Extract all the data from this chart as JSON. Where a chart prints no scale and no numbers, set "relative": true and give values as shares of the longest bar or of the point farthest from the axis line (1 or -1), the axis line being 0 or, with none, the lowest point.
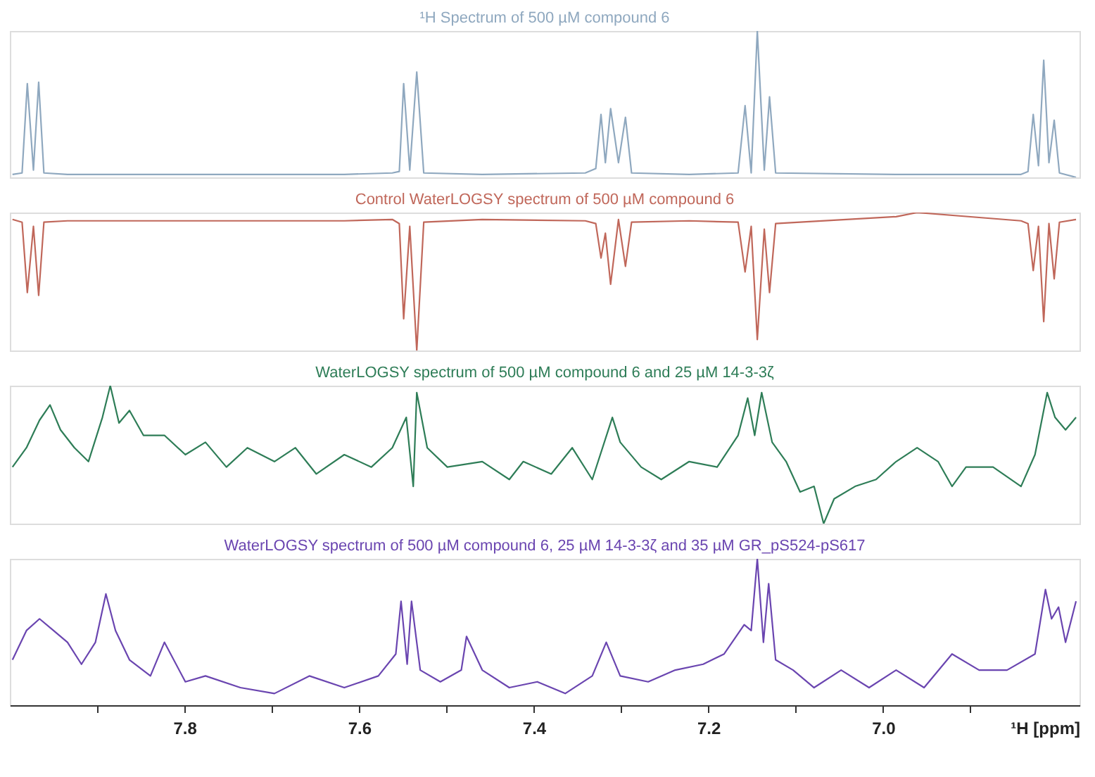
{
  "chart_data": [
    {
      "type": "line",
      "title": "¹H Spectrum of 500 µM compound 6",
      "relative": true,
      "xlim": [
        8.0,
        6.775
      ],
      "tick_labels": false,
      "series": [
        {
          "color": "#8fa8bf",
          "x": [
            7.997,
            7.986,
            7.98,
            7.973,
            7.967,
            7.961,
            7.934,
            7.776,
            7.617,
            7.562,
            7.554,
            7.549,
            7.542,
            7.534,
            7.526,
            7.459,
            7.341,
            7.329,
            7.323,
            7.318,
            7.312,
            7.303,
            7.295,
            7.288,
            7.222,
            7.166,
            7.158,
            7.151,
            7.144,
            7.136,
            7.13,
            7.123,
            6.985,
            6.961,
            6.842,
            6.834,
            6.828,
            6.822,
            6.816,
            6.81,
            6.804,
            6.798,
            6.779
          ],
          "values": [
            0.02,
            0.03,
            0.64,
            0.05,
            0.65,
            0.03,
            0.02,
            0.02,
            0.02,
            0.03,
            0.04,
            0.64,
            0.05,
            0.72,
            0.03,
            0.02,
            0.03,
            0.06,
            0.43,
            0.1,
            0.47,
            0.1,
            0.41,
            0.03,
            0.02,
            0.03,
            0.49,
            0.03,
            1.0,
            0.05,
            0.55,
            0.03,
            0.02,
            0.02,
            0.02,
            0.04,
            0.43,
            0.08,
            0.8,
            0.1,
            0.39,
            0.03,
            0.0
          ]
        }
      ]
    },
    {
      "type": "line",
      "title": "Control WaterLOGSY spectrum of 500 µM compound 6",
      "relative": true,
      "xlim": [
        8.0,
        6.775
      ],
      "tick_labels": false,
      "series": [
        {
          "color": "#c0675a",
          "x": [
            7.997,
            7.986,
            7.98,
            7.973,
            7.967,
            7.961,
            7.934,
            7.776,
            7.617,
            7.562,
            7.554,
            7.549,
            7.542,
            7.534,
            7.526,
            7.459,
            7.341,
            7.329,
            7.323,
            7.318,
            7.312,
            7.303,
            7.295,
            7.288,
            7.222,
            7.166,
            7.158,
            7.151,
            7.144,
            7.136,
            7.13,
            7.123,
            6.985,
            6.961,
            6.842,
            6.834,
            6.828,
            6.822,
            6.816,
            6.81,
            6.804,
            6.798,
            6.779
          ],
          "values": [
            0.95,
            0.93,
            0.42,
            0.9,
            0.4,
            0.93,
            0.94,
            0.94,
            0.94,
            0.95,
            0.92,
            0.23,
            0.9,
            0.0,
            0.93,
            0.95,
            0.94,
            0.92,
            0.67,
            0.85,
            0.48,
            0.95,
            0.61,
            0.93,
            0.94,
            0.93,
            0.57,
            0.9,
            0.08,
            0.88,
            0.42,
            0.92,
            0.97,
            1.0,
            0.94,
            0.92,
            0.58,
            0.9,
            0.21,
            0.92,
            0.52,
            0.93,
            0.95
          ]
        }
      ]
    },
    {
      "type": "line",
      "title": "WaterLOGSY spectrum of 500 µM compound 6 and 25 µM 14-3-3ζ",
      "relative": true,
      "xlim": [
        8.0,
        6.775
      ],
      "tick_labels": false,
      "series": [
        {
          "color": "#2e7d57",
          "x": [
            7.997,
            7.981,
            7.966,
            7.954,
            7.942,
            7.926,
            7.91,
            7.894,
            7.885,
            7.875,
            7.863,
            7.847,
            7.823,
            7.799,
            7.776,
            7.752,
            7.728,
            7.697,
            7.673,
            7.649,
            7.617,
            7.586,
            7.562,
            7.546,
            7.538,
            7.534,
            7.522,
            7.499,
            7.459,
            7.428,
            7.412,
            7.38,
            7.356,
            7.333,
            7.31,
            7.301,
            7.277,
            7.254,
            7.222,
            7.19,
            7.166,
            7.155,
            7.147,
            7.139,
            7.127,
            7.111,
            7.095,
            7.079,
            7.068,
            7.056,
            7.032,
            7.008,
            6.985,
            6.961,
            6.937,
            6.921,
            6.905,
            6.874,
            6.842,
            6.826,
            6.812,
            6.803,
            6.791,
            6.779
          ],
          "values": [
            0.41,
            0.55,
            0.75,
            0.86,
            0.68,
            0.55,
            0.45,
            0.77,
            1.0,
            0.73,
            0.82,
            0.64,
            0.64,
            0.5,
            0.59,
            0.41,
            0.55,
            0.45,
            0.55,
            0.36,
            0.5,
            0.41,
            0.55,
            0.77,
            0.27,
            0.95,
            0.55,
            0.41,
            0.45,
            0.32,
            0.45,
            0.36,
            0.55,
            0.32,
            0.77,
            0.59,
            0.41,
            0.32,
            0.45,
            0.41,
            0.64,
            0.91,
            0.64,
            0.95,
            0.59,
            0.45,
            0.23,
            0.27,
            0.0,
            0.18,
            0.27,
            0.32,
            0.45,
            0.55,
            0.45,
            0.27,
            0.41,
            0.41,
            0.27,
            0.5,
            0.95,
            0.77,
            0.68,
            0.77
          ]
        }
      ]
    },
    {
      "type": "line",
      "title": "WaterLOGSY spectrum of 500 µM compound 6, 25 µM 14-3-3ζ and 35 µM GR_pS524-pS617",
      "relative": true,
      "xlim": [
        8.0,
        6.775
      ],
      "tick_labels": "x",
      "xlabel": "¹H [ppm]",
      "xticks": [
        {
          "value": 7.9,
          "label": null
        },
        7.8,
        {
          "value": 7.7,
          "label": null
        },
        7.6,
        {
          "value": 7.5,
          "label": null
        },
        7.4,
        {
          "value": 7.3,
          "label": null
        },
        7.2,
        {
          "value": 7.1,
          "label": null
        },
        {
          "value": 7.0,
          "label": "7.0"
        },
        {
          "value": 6.9,
          "label": null
        }
      ],
      "series": [
        {
          "color": "#6a45b0",
          "x": [
            7.997,
            7.981,
            7.966,
            7.95,
            7.934,
            7.918,
            7.902,
            7.89,
            7.879,
            7.863,
            7.839,
            7.823,
            7.799,
            7.776,
            7.736,
            7.697,
            7.657,
            7.617,
            7.578,
            7.558,
            7.552,
            7.545,
            7.54,
            7.53,
            7.507,
            7.483,
            7.477,
            7.459,
            7.428,
            7.396,
            7.364,
            7.333,
            7.317,
            7.301,
            7.269,
            7.238,
            7.206,
            7.182,
            7.159,
            7.151,
            7.144,
            7.137,
            7.131,
            7.123,
            7.103,
            7.079,
            7.048,
            7.016,
            6.985,
            6.953,
            6.921,
            6.89,
            6.858,
            6.826,
            6.814,
            6.807,
            6.799,
            6.791,
            6.779
          ],
          "values": [
            0.31,
            0.51,
            0.59,
            0.51,
            0.43,
            0.28,
            0.43,
            0.76,
            0.51,
            0.31,
            0.2,
            0.43,
            0.16,
            0.2,
            0.12,
            0.08,
            0.2,
            0.12,
            0.2,
            0.35,
            0.71,
            0.28,
            0.71,
            0.24,
            0.16,
            0.24,
            0.47,
            0.24,
            0.12,
            0.16,
            0.08,
            0.2,
            0.43,
            0.2,
            0.16,
            0.24,
            0.28,
            0.35,
            0.55,
            0.51,
            1.0,
            0.43,
            0.83,
            0.31,
            0.24,
            0.12,
            0.24,
            0.12,
            0.24,
            0.12,
            0.35,
            0.24,
            0.24,
            0.35,
            0.79,
            0.59,
            0.67,
            0.43,
            0.71
          ]
        }
      ]
    }
  ]
}
